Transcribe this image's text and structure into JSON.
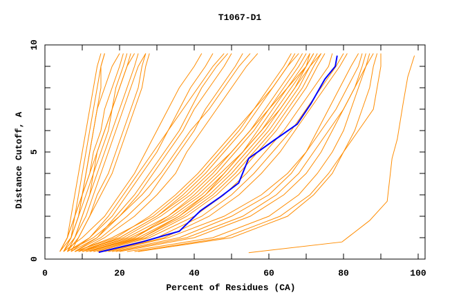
{
  "chart_data": {
    "type": "line",
    "title": "T1067-D1",
    "xlabel": "Percent of Residues (CA)",
    "ylabel": "Distance Cutoff, A",
    "xlim": [
      0,
      102
    ],
    "ylim": [
      0,
      10
    ],
    "x_ticks": [
      0,
      20,
      40,
      60,
      80,
      100
    ],
    "y_ticks": [
      0,
      5,
      10
    ],
    "x_tick_labels": [
      "0",
      "20",
      "40",
      "60",
      "80",
      "100"
    ],
    "y_tick_labels": [
      "0",
      "5",
      "10"
    ],
    "grid": false,
    "legend": "none",
    "colors": {
      "models": "#ff8c00",
      "highlight": "#0000ff"
    },
    "y_levels": [
      0.35,
      1,
      2,
      3,
      4,
      5,
      6,
      7,
      8,
      9,
      9.6
    ],
    "series": [
      {
        "x": [
          4,
          6,
          7,
          8,
          9,
          10,
          11,
          12,
          13,
          14,
          15
        ]
      },
      {
        "x": [
          4,
          6,
          8,
          9,
          10,
          11,
          12,
          13,
          14,
          15,
          16
        ]
      },
      {
        "x": [
          5,
          7,
          8,
          10,
          11,
          12,
          13,
          14,
          16,
          18,
          20
        ]
      },
      {
        "x": [
          5,
          7,
          9,
          10,
          12,
          13,
          15,
          16,
          18,
          20,
          21
        ]
      },
      {
        "x": [
          4,
          6,
          8,
          10,
          12,
          14,
          16,
          18,
          20,
          22,
          24
        ]
      },
      {
        "x": [
          6,
          8,
          10,
          12,
          13,
          15,
          17,
          18,
          19,
          21,
          22
        ]
      },
      {
        "x": [
          5,
          7,
          9,
          11,
          13,
          14,
          16,
          18,
          20,
          22,
          23
        ]
      },
      {
        "x": [
          6,
          8,
          11,
          13,
          15,
          17,
          19,
          21,
          23,
          25,
          27
        ]
      },
      {
        "x": [
          5,
          8,
          10,
          12,
          14,
          16,
          18,
          20,
          22,
          24,
          25
        ]
      },
      {
        "x": [
          7,
          9,
          12,
          15,
          18,
          20,
          22,
          24,
          26,
          27,
          28
        ]
      },
      {
        "x": [
          4,
          7,
          9,
          10,
          11,
          12,
          13,
          14,
          15,
          15,
          16
        ]
      },
      {
        "x": [
          6,
          9,
          12,
          14,
          17,
          19,
          21,
          23,
          25,
          26,
          27
        ]
      },
      {
        "x": [
          5,
          10,
          16,
          20,
          24,
          27,
          30,
          33,
          36,
          40,
          42
        ]
      },
      {
        "x": [
          6,
          12,
          18,
          22,
          26,
          30,
          33,
          36,
          39,
          43,
          45
        ]
      },
      {
        "x": [
          7,
          14,
          20,
          25,
          29,
          33,
          37,
          40,
          44,
          48,
          50
        ]
      },
      {
        "x": [
          8,
          15,
          22,
          28,
          32,
          36,
          40,
          43,
          47,
          51,
          53
        ]
      },
      {
        "x": [
          6,
          13,
          20,
          26,
          31,
          35,
          39,
          44,
          48,
          52,
          55
        ]
      },
      {
        "x": [
          9,
          16,
          24,
          30,
          35,
          38,
          42,
          46,
          50,
          54,
          57
        ]
      },
      {
        "x": [
          7,
          12,
          17,
          21,
          25,
          29,
          33,
          37,
          41,
          45,
          48
        ]
      },
      {
        "x": [
          8,
          14,
          19,
          24,
          28,
          32,
          36,
          39,
          42,
          46,
          49
        ]
      },
      {
        "x": [
          9,
          20,
          30,
          37,
          43,
          48,
          53,
          57,
          61,
          65,
          67
        ]
      },
      {
        "x": [
          10,
          22,
          33,
          40,
          46,
          51,
          56,
          60,
          64,
          68,
          70
        ]
      },
      {
        "x": [
          8,
          18,
          29,
          36,
          42,
          47,
          52,
          56,
          61,
          65,
          68
        ]
      },
      {
        "x": [
          11,
          24,
          34,
          42,
          48,
          53,
          58,
          62,
          66,
          70,
          72
        ]
      },
      {
        "x": [
          12,
          25,
          36,
          44,
          50,
          55,
          60,
          64,
          68,
          71,
          73
        ]
      },
      {
        "x": [
          10,
          23,
          35,
          43,
          49,
          54,
          59,
          63,
          67,
          70,
          71
        ]
      },
      {
        "x": [
          13,
          27,
          38,
          46,
          52,
          57,
          62,
          66,
          70,
          73,
          75
        ]
      },
      {
        "x": [
          9,
          21,
          31,
          39,
          45,
          50,
          55,
          59,
          63,
          67,
          69
        ]
      },
      {
        "x": [
          11,
          26,
          37,
          45,
          51,
          56,
          61,
          65,
          69,
          72,
          74
        ]
      },
      {
        "x": [
          14,
          28,
          40,
          48,
          54,
          59,
          64,
          68,
          72,
          76,
          77
        ]
      },
      {
        "x": [
          10,
          20,
          30,
          38,
          44,
          50,
          55,
          60,
          65,
          70,
          72
        ]
      },
      {
        "x": [
          12,
          24,
          33,
          41,
          47,
          53,
          58,
          63,
          67,
          71,
          74
        ]
      },
      {
        "x": [
          15,
          30,
          42,
          50,
          56,
          61,
          66,
          70,
          74,
          78,
          80
        ]
      },
      {
        "x": [
          8,
          19,
          28,
          35,
          41,
          46,
          51,
          56,
          60,
          64,
          66
        ]
      },
      {
        "x": [
          13,
          26,
          36,
          43,
          48,
          53,
          57,
          61,
          65,
          69,
          71
        ]
      },
      {
        "x": [
          16,
          32,
          44,
          52,
          58,
          63,
          67,
          71,
          75,
          79,
          81
        ]
      },
      {
        "x": [
          18,
          36,
          50,
          60,
          66,
          70,
          73,
          76,
          79,
          82,
          84
        ]
      },
      {
        "x": [
          20,
          40,
          55,
          64,
          70,
          74,
          77,
          80,
          83,
          85,
          86
        ]
      },
      {
        "x": [
          22,
          45,
          60,
          68,
          73,
          77,
          80,
          82,
          84,
          86,
          87
        ]
      },
      {
        "x": [
          17,
          33,
          48,
          58,
          65,
          70,
          74,
          78,
          81,
          84,
          85
        ]
      },
      {
        "x": [
          25,
          50,
          65,
          72,
          77,
          80,
          83,
          85,
          87,
          88,
          89
        ]
      },
      {
        "x": [
          24,
          48,
          63,
          71,
          76,
          80,
          84,
          88,
          89,
          90,
          90
        ]
      },
      {
        "x": [
          19,
          38,
          53,
          62,
          68,
          72,
          76,
          80,
          83,
          86,
          88
        ]
      },
      {
        "points": [
          [
            54.6,
            0.3
          ],
          [
            79.6,
            0.8
          ],
          [
            87,
            1.8
          ],
          [
            91.7,
            2.7
          ],
          [
            93,
            4.7
          ],
          [
            94.4,
            5.6
          ],
          [
            96,
            7.3
          ],
          [
            97.2,
            8.5
          ],
          [
            99,
            9.5
          ]
        ]
      }
    ],
    "highlight_series": {
      "points": [
        [
          14.4,
          0.32
        ],
        [
          26,
          0.8
        ],
        [
          36,
          1.3
        ],
        [
          41.7,
          2.26
        ],
        [
          47,
          2.9
        ],
        [
          51.9,
          3.55
        ],
        [
          54.6,
          4.7
        ],
        [
          61,
          5.5
        ],
        [
          67.6,
          6.3
        ],
        [
          71.3,
          7.26
        ],
        [
          75,
          8.4
        ],
        [
          77.8,
          9.0
        ],
        [
          78.3,
          9.5
        ]
      ]
    }
  }
}
